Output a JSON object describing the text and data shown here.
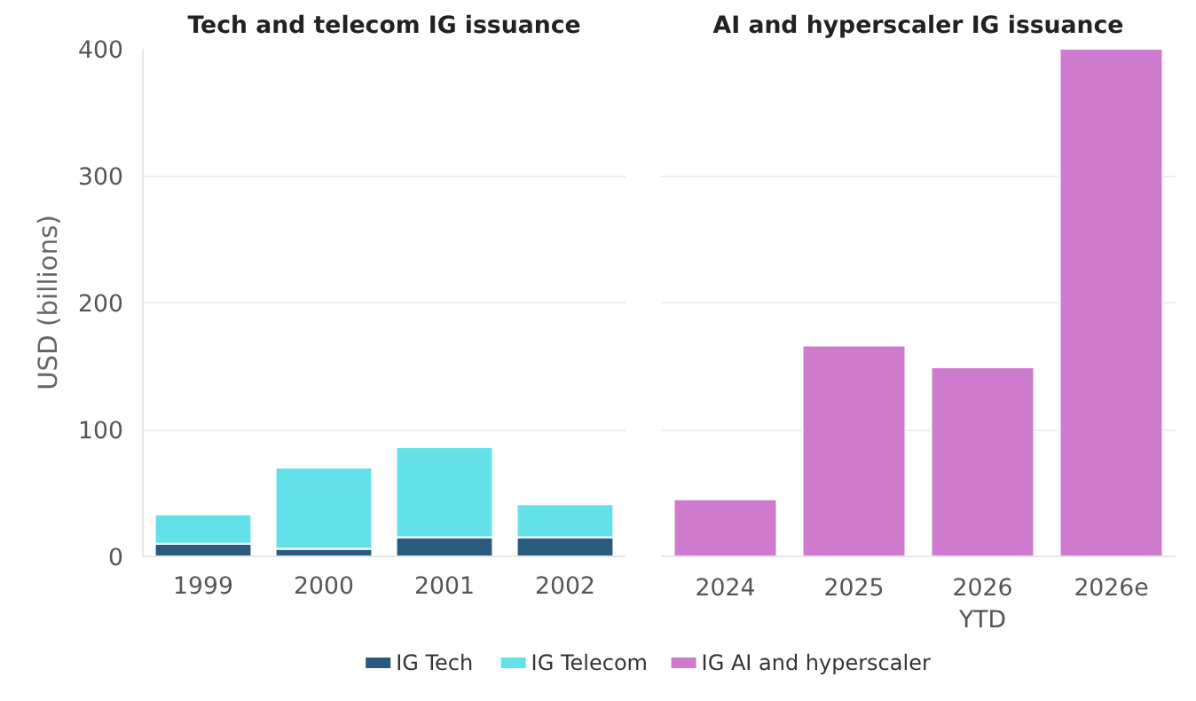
{
  "chart_data": [
    {
      "type": "bar",
      "title": "Tech and telecom IG issuance",
      "ylabel": "USD (billions)",
      "categories": [
        "1999",
        "2000",
        "2001",
        "2002"
      ],
      "stacked": true,
      "series": [
        {
          "name": "IG Tech",
          "color": "#2a5b7e",
          "values": [
            10,
            6,
            15,
            15
          ]
        },
        {
          "name": "IG Telecom",
          "color": "#64e1e8",
          "values": [
            23,
            64,
            71,
            26
          ]
        }
      ],
      "ylim": [
        0,
        400
      ],
      "yticks": [
        0,
        100,
        200,
        300,
        400
      ],
      "grid": "y",
      "legend": "bottom"
    },
    {
      "type": "bar",
      "title": "AI and hyperscaler IG issuance",
      "categories": [
        "2024",
        "2025",
        "2026\nYTD",
        "2026e"
      ],
      "series": [
        {
          "name": "IG AI and hyperscaler",
          "color": "#cf7bcd",
          "values": [
            45,
            166,
            149,
            400
          ]
        }
      ],
      "ylim": [
        0,
        400
      ],
      "yticks": [
        0,
        100,
        200,
        300,
        400
      ],
      "grid": "y",
      "legend": "bottom",
      "tick_labels": "x"
    }
  ]
}
